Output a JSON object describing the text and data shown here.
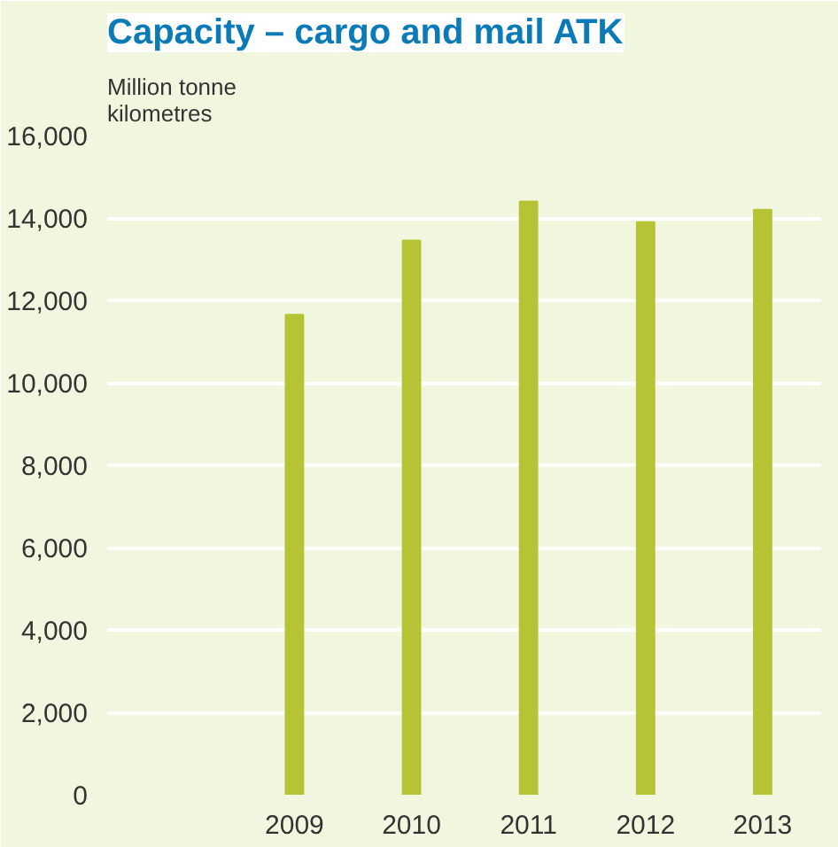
{
  "chart_data": {
    "type": "bar",
    "title": "Capacity – cargo and mail ATK",
    "ylabel": "Million tonne\nkilometres",
    "categories": [
      "2009",
      "2010",
      "2011",
      "2012",
      "2013"
    ],
    "values": [
      11650,
      13450,
      14400,
      13900,
      14200
    ],
    "color": "#b5c334",
    "ylim": [
      0,
      16000
    ],
    "yticks": [
      {
        "value": 0,
        "label": "0"
      },
      {
        "value": 2000,
        "label": "2,000"
      },
      {
        "value": 4000,
        "label": "4,000"
      },
      {
        "value": 6000,
        "label": "6,000"
      },
      {
        "value": 8000,
        "label": "8,000"
      },
      {
        "value": 10000,
        "label": "10,000"
      },
      {
        "value": 12000,
        "label": "12,000"
      },
      {
        "value": 14000,
        "label": "14,000"
      },
      {
        "value": 16000,
        "label": "16,000"
      }
    ],
    "grid": "y"
  }
}
